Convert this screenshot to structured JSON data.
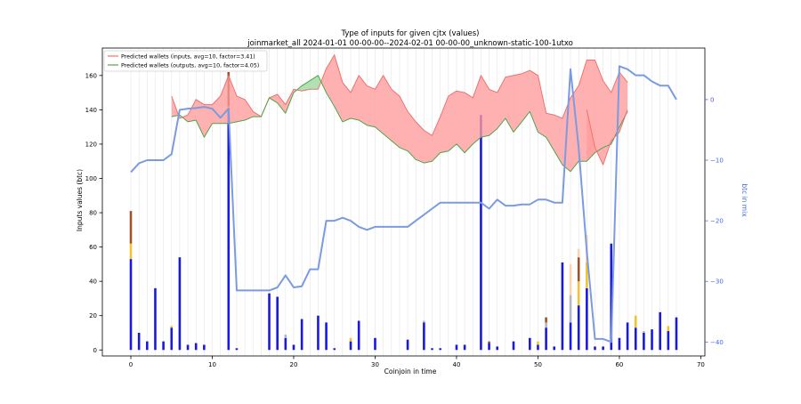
{
  "chart_data": {
    "type": "bar+line+area",
    "title": "Type of inputs for given cjtx (values)",
    "subtitle": "joinmarket_all 2024-01-01 00-00-00--2024-02-01 00-00-00_unknown-static-100-1utxo",
    "xlabel": "Coinjoin in time",
    "ylabel": "Inputs values (btc)",
    "y2label": "btc in mix",
    "xlim": [
      -3.5,
      70.5
    ],
    "ylim": [
      -3.5,
      176
    ],
    "y2lim": [
      -42.3,
      8.5
    ],
    "x_ticks": [
      0,
      10,
      20,
      30,
      40,
      50,
      60,
      70
    ],
    "y_ticks": [
      0,
      20,
      40,
      60,
      80,
      100,
      120,
      140,
      160
    ],
    "y2_ticks": [
      0,
      -10,
      -20,
      -30,
      -40
    ],
    "legend_position": "top-left",
    "grid": "vertical lines at each coinjoin",
    "colors": {
      "bar_blue": "#1a1adc",
      "bar_gold": "#f2c230",
      "bar_brown": "#a0522d",
      "bar_peach": "#fcd5b0",
      "bar_grey": "#b5b5c8",
      "in_line": "#f07070",
      "in_fill": "#ff9d9d",
      "out_line": "#4ca64c",
      "out_fill": "#9fd89f",
      "mix_line": "#7b9be0",
      "y2_axis": "#4169e1"
    },
    "legend": [
      "Predicted wallets (inputs, avg=10, factor=3.41)",
      "Predicted wallets (outputs, avg=10, factor=4.05)"
    ],
    "bars": [
      {
        "x": 0,
        "segments": [
          {
            "v": 53,
            "c": "blue"
          },
          {
            "v": 9,
            "c": "gold"
          },
          {
            "v": 19,
            "c": "brown"
          }
        ]
      },
      {
        "x": 1,
        "segments": [
          {
            "v": 10,
            "c": "blue"
          }
        ]
      },
      {
        "x": 2,
        "segments": [
          {
            "v": 5,
            "c": "blue"
          }
        ]
      },
      {
        "x": 3,
        "segments": [
          {
            "v": 36,
            "c": "blue"
          }
        ]
      },
      {
        "x": 4,
        "segments": [
          {
            "v": 5,
            "c": "blue"
          }
        ]
      },
      {
        "x": 5,
        "segments": [
          {
            "v": 13,
            "c": "blue"
          },
          {
            "v": 1,
            "c": "gold"
          }
        ]
      },
      {
        "x": 6,
        "segments": [
          {
            "v": 54,
            "c": "blue"
          }
        ]
      },
      {
        "x": 7,
        "segments": [
          {
            "v": 3,
            "c": "blue"
          }
        ]
      },
      {
        "x": 8,
        "segments": [
          {
            "v": 4,
            "c": "blue"
          }
        ]
      },
      {
        "x": 9,
        "segments": [
          {
            "v": 3,
            "c": "blue"
          }
        ]
      },
      {
        "x": 12,
        "segments": [
          {
            "v": 141,
            "c": "blue"
          },
          {
            "v": 1,
            "c": "gold"
          },
          {
            "v": 20,
            "c": "brown"
          }
        ]
      },
      {
        "x": 13,
        "segments": [
          {
            "v": 1,
            "c": "blue"
          }
        ]
      },
      {
        "x": 17,
        "segments": [
          {
            "v": 33,
            "c": "blue"
          }
        ]
      },
      {
        "x": 18,
        "segments": [
          {
            "v": 31,
            "c": "blue"
          }
        ]
      },
      {
        "x": 19,
        "segments": [
          {
            "v": 7,
            "c": "blue"
          },
          {
            "v": 2,
            "c": "grey"
          }
        ]
      },
      {
        "x": 20,
        "segments": [
          {
            "v": 3,
            "c": "blue"
          }
        ]
      },
      {
        "x": 21,
        "segments": [
          {
            "v": 18,
            "c": "blue"
          }
        ]
      },
      {
        "x": 23,
        "segments": [
          {
            "v": 20,
            "c": "blue"
          }
        ]
      },
      {
        "x": 24,
        "segments": [
          {
            "v": 16,
            "c": "blue"
          }
        ]
      },
      {
        "x": 25,
        "segments": [
          {
            "v": 1,
            "c": "blue"
          }
        ]
      },
      {
        "x": 27,
        "segments": [
          {
            "v": 5,
            "c": "blue"
          },
          {
            "v": 2,
            "c": "gold"
          }
        ]
      },
      {
        "x": 28,
        "segments": [
          {
            "v": 17,
            "c": "blue"
          }
        ]
      },
      {
        "x": 30,
        "segments": [
          {
            "v": 7,
            "c": "blue"
          }
        ]
      },
      {
        "x": 34,
        "segments": [
          {
            "v": 6,
            "c": "blue"
          }
        ]
      },
      {
        "x": 36,
        "segments": [
          {
            "v": 16,
            "c": "blue"
          },
          {
            "v": 1,
            "c": "grey"
          }
        ]
      },
      {
        "x": 37,
        "segments": [
          {
            "v": 1,
            "c": "blue"
          }
        ]
      },
      {
        "x": 38,
        "segments": [
          {
            "v": 1,
            "c": "blue"
          }
        ]
      },
      {
        "x": 40,
        "segments": [
          {
            "v": 3,
            "c": "blue"
          }
        ]
      },
      {
        "x": 41,
        "segments": [
          {
            "v": 3,
            "c": "blue"
          }
        ]
      },
      {
        "x": 43,
        "segments": [
          {
            "v": 137,
            "c": "blue"
          }
        ]
      },
      {
        "x": 44,
        "segments": [
          {
            "v": 4,
            "c": "blue"
          },
          {
            "v": 1,
            "c": "brown"
          }
        ]
      },
      {
        "x": 45,
        "segments": [
          {
            "v": 2,
            "c": "blue"
          }
        ]
      },
      {
        "x": 47,
        "segments": [
          {
            "v": 5,
            "c": "blue"
          }
        ]
      },
      {
        "x": 49,
        "segments": [
          {
            "v": 7,
            "c": "blue"
          }
        ]
      },
      {
        "x": 50,
        "segments": [
          {
            "v": 3,
            "c": "blue"
          },
          {
            "v": 2,
            "c": "gold"
          }
        ]
      },
      {
        "x": 51,
        "segments": [
          {
            "v": 13,
            "c": "blue"
          },
          {
            "v": 3,
            "c": "grey"
          },
          {
            "v": 3,
            "c": "brown"
          }
        ]
      },
      {
        "x": 52,
        "segments": [
          {
            "v": 2,
            "c": "blue"
          }
        ]
      },
      {
        "x": 53,
        "segments": [
          {
            "v": 51,
            "c": "blue"
          }
        ]
      },
      {
        "x": 54,
        "segments": [
          {
            "v": 16,
            "c": "blue"
          },
          {
            "v": 16,
            "c": "grey"
          },
          {
            "v": 18,
            "c": "peach"
          }
        ]
      },
      {
        "x": 55,
        "segments": [
          {
            "v": 26,
            "c": "blue"
          },
          {
            "v": 14,
            "c": "gold"
          },
          {
            "v": 14,
            "c": "brown"
          },
          {
            "v": 5,
            "c": "peach"
          }
        ]
      },
      {
        "x": 56,
        "segments": [
          {
            "v": 36,
            "c": "blue"
          },
          {
            "v": 15,
            "c": "gold"
          },
          {
            "v": 16,
            "c": "peach"
          }
        ]
      },
      {
        "x": 57,
        "segments": [
          {
            "v": 2,
            "c": "blue"
          }
        ]
      },
      {
        "x": 58,
        "segments": [
          {
            "v": 2,
            "c": "blue"
          }
        ]
      },
      {
        "x": 59,
        "segments": [
          {
            "v": 62,
            "c": "blue"
          }
        ]
      },
      {
        "x": 60,
        "segments": [
          {
            "v": 7,
            "c": "blue"
          }
        ]
      },
      {
        "x": 61,
        "segments": [
          {
            "v": 16,
            "c": "blue"
          }
        ]
      },
      {
        "x": 62,
        "segments": [
          {
            "v": 13,
            "c": "blue"
          },
          {
            "v": 7,
            "c": "gold"
          }
        ]
      },
      {
        "x": 63,
        "segments": [
          {
            "v": 10,
            "c": "blue"
          },
          {
            "v": 1,
            "c": "grey"
          }
        ]
      },
      {
        "x": 64,
        "segments": [
          {
            "v": 12,
            "c": "blue"
          }
        ]
      },
      {
        "x": 65,
        "segments": [
          {
            "v": 22,
            "c": "blue"
          }
        ]
      },
      {
        "x": 66,
        "segments": [
          {
            "v": 11,
            "c": "blue"
          },
          {
            "v": 3,
            "c": "gold"
          }
        ]
      },
      {
        "x": 67,
        "segments": [
          {
            "v": 19,
            "c": "blue"
          }
        ]
      }
    ],
    "wallets_inputs": {
      "x": [
        5,
        6,
        7,
        8,
        9,
        10,
        11,
        12,
        13,
        14,
        15,
        16,
        17,
        18,
        19,
        20,
        21,
        22,
        23,
        24,
        25,
        26,
        27,
        28,
        29,
        30,
        31,
        32,
        33,
        34,
        35,
        36,
        37,
        38,
        39,
        40,
        41,
        42,
        43,
        44,
        45,
        46,
        47,
        48,
        49,
        50,
        51,
        52,
        53,
        54,
        55,
        56,
        57,
        58,
        59,
        60,
        61
      ],
      "y": [
        148,
        135,
        137,
        146,
        143,
        143,
        148,
        160,
        148,
        146,
        139,
        136,
        147,
        149,
        143,
        152,
        151,
        152,
        152,
        164,
        172,
        156,
        150,
        160,
        154,
        152,
        160,
        152,
        148,
        139,
        133,
        128,
        125,
        136,
        148,
        151,
        150,
        147,
        160,
        152,
        150,
        159,
        160,
        161,
        163,
        160,
        138,
        137,
        135,
        147,
        154,
        169,
        169,
        157,
        150,
        162,
        156
      ]
    },
    "wallets_outputs": {
      "x": [
        5,
        6,
        7,
        8,
        9,
        10,
        11,
        12,
        13,
        14,
        15,
        16,
        17,
        18,
        19,
        20,
        21,
        22,
        23,
        24,
        25,
        26,
        27,
        28,
        29,
        30,
        31,
        32,
        33,
        34,
        35,
        36,
        37,
        38,
        39,
        40,
        41,
        42,
        43,
        44,
        45,
        46,
        47,
        48,
        49,
        50,
        51,
        52,
        53,
        54,
        55,
        56,
        57,
        58,
        59,
        60,
        61
      ],
      "y": [
        136,
        137,
        133,
        134,
        124,
        132,
        132,
        132,
        133,
        134,
        136,
        136,
        147,
        144,
        138,
        150,
        154,
        157,
        160,
        150,
        142,
        133,
        135,
        134,
        131,
        130,
        126,
        122,
        118,
        116,
        111,
        109,
        110,
        115,
        116,
        120,
        115,
        120,
        124,
        125,
        129,
        135,
        127,
        133,
        139,
        127,
        124,
        116,
        108,
        104,
        110,
        110,
        115,
        118,
        120,
        130,
        139
      ]
    },
    "wallets_inputs_extra": {
      "x": [
        56,
        57,
        58,
        59,
        60,
        61
      ],
      "y": [
        140,
        118,
        108,
        122,
        127,
        140
      ]
    },
    "btc_in_mix": {
      "x": [
        0,
        1,
        2,
        3,
        4,
        5,
        6,
        7,
        8,
        9,
        10,
        11,
        12,
        13,
        14,
        15,
        16,
        17,
        18,
        19,
        20,
        21,
        22,
        23,
        24,
        25,
        26,
        27,
        28,
        29,
        30,
        31,
        32,
        33,
        34,
        35,
        36,
        37,
        38,
        39,
        40,
        41,
        42,
        43,
        44,
        45,
        46,
        47,
        48,
        49,
        50,
        51,
        52,
        53,
        54,
        55,
        56,
        57,
        58,
        59,
        60,
        61,
        62,
        63,
        64,
        65,
        66,
        67
      ],
      "y": [
        -12,
        -10.5,
        -10,
        -10,
        -10,
        -9,
        -1.7,
        -1.5,
        -1.4,
        -1.2,
        -1.5,
        -3,
        -1.5,
        -31.5,
        -31.5,
        -31.5,
        -31.5,
        -31.5,
        -31,
        -29,
        -31,
        -30.8,
        -28,
        -28,
        -20,
        -20,
        -19.5,
        -20,
        -21,
        -21.5,
        -21,
        -21,
        -21,
        -21,
        -21,
        -20,
        -19,
        -18,
        -17,
        -17,
        -17,
        -17,
        -17,
        -17,
        -18,
        -16.5,
        -17.5,
        -17.5,
        -17.3,
        -17.3,
        -16.5,
        -16.5,
        -17,
        -17,
        5,
        -8,
        -25,
        -39.5,
        -39.5,
        -40,
        5.5,
        5,
        4,
        4,
        3,
        2.3,
        2.3,
        0
      ]
    }
  }
}
